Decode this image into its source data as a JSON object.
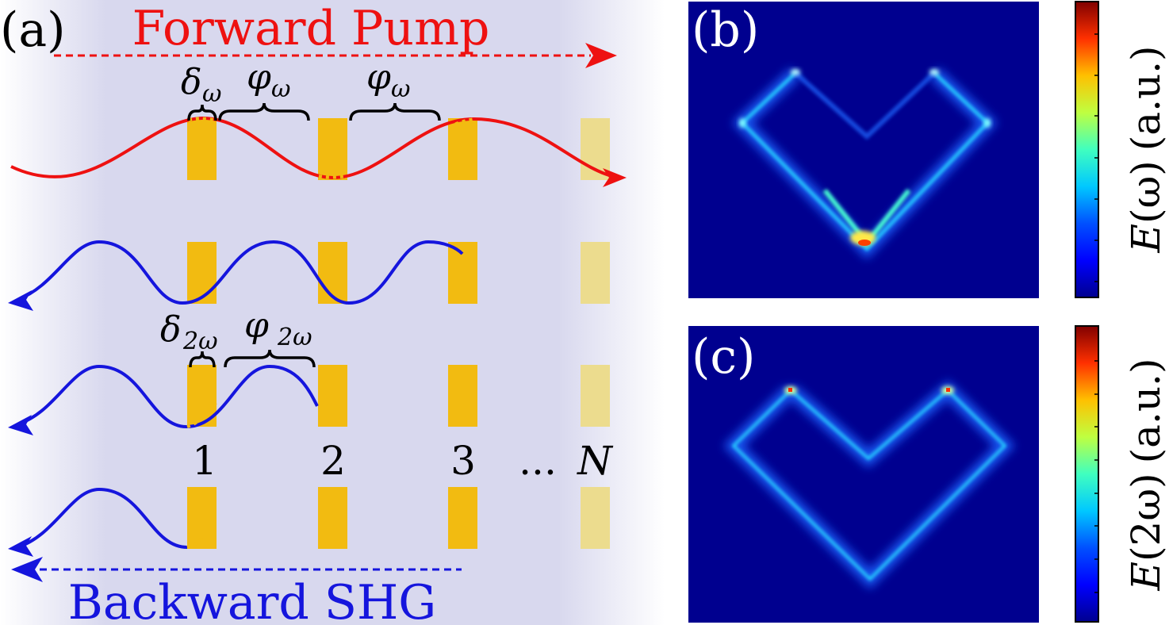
{
  "panel_a": {
    "label": "(a)",
    "forward_label": "Forward Pump",
    "backward_label": "Backward SHG",
    "delta_w": "δ",
    "delta_w_sub": "ω",
    "phi_w_1": "φ",
    "phi_w_1_sub": "ω",
    "phi_w_2": "φ",
    "phi_w_2_sub": "ω",
    "delta_2w": "δ",
    "delta_2w_sub": "2ω",
    "phi_2w": "φ",
    "phi_2w_sub": "2ω",
    "element_numbers": [
      "1",
      "2",
      "3",
      "...",
      "N"
    ],
    "colors": {
      "forward": "#ee1111",
      "backward": "#1515dd",
      "element": "#f2bb11",
      "element_faded": "#ecdc8e",
      "background": "#d8d8ee"
    }
  },
  "panel_b": {
    "label": "(b)",
    "colorbar_label_var": "E",
    "colorbar_label_arg": "(ω)",
    "colorbar_label_unit": "(a.u.)"
  },
  "panel_c": {
    "label": "(c)",
    "colorbar_label_var": "E",
    "colorbar_label_arg": "(2ω)",
    "colorbar_label_unit": "(a.u.)"
  },
  "colormap": [
    "#00008f",
    "#0000ff",
    "#007fff",
    "#00ffff",
    "#7fff7f",
    "#ffff00",
    "#ff7f00",
    "#ff0000",
    "#7f0000"
  ]
}
